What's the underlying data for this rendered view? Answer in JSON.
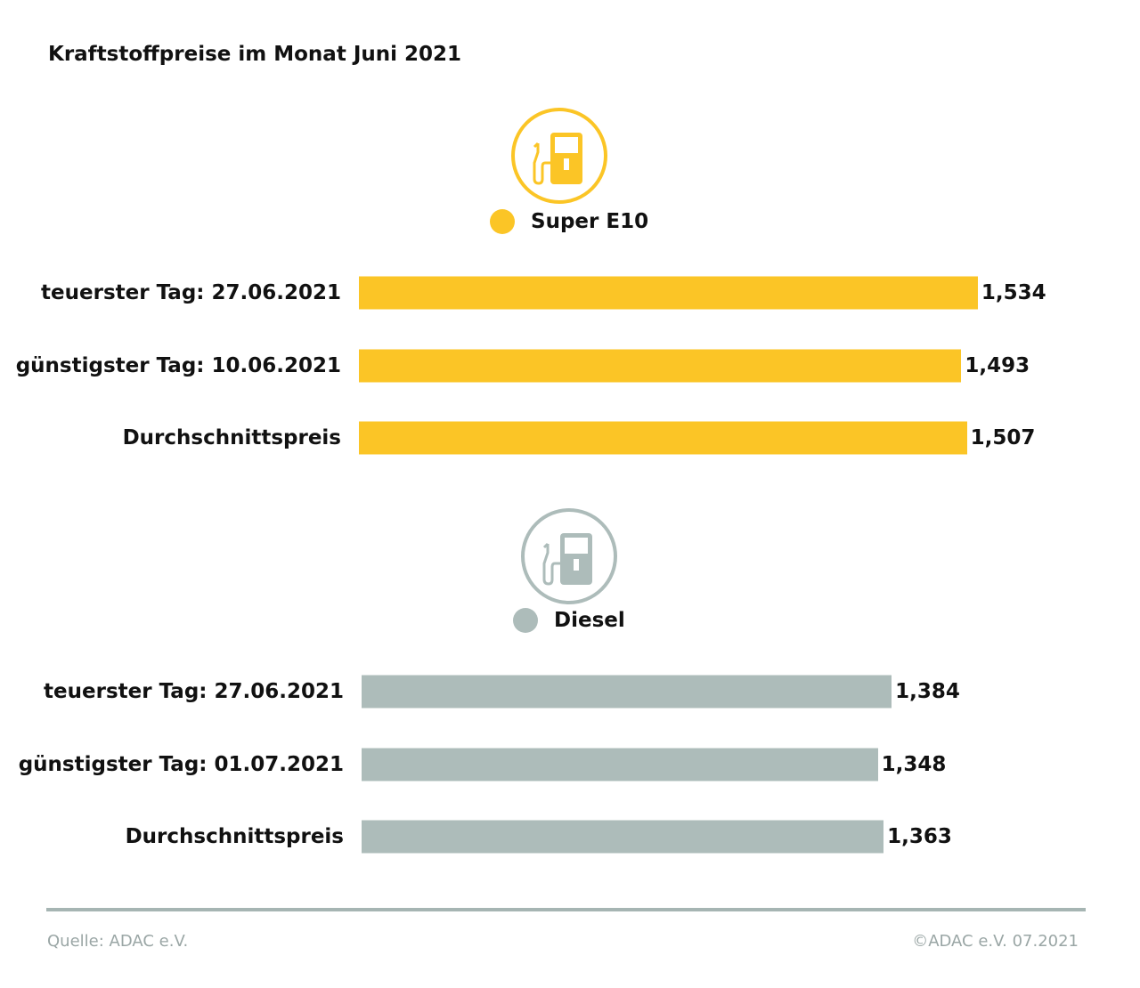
{
  "chart_data": {
    "type": "bar",
    "orientation": "horizontal",
    "title": "Kraftstoffpreise im Monat Juni 2021",
    "groups": [
      {
        "name": "Super E10",
        "color": "#fbc526",
        "icon": "fuel-pump-icon",
        "categories": [
          "teuerster Tag: 27.06.2021",
          "günstigster Tag: 10.06.2021",
          "Durchschnittspreis"
        ],
        "values": [
          1.534,
          1.493,
          1.507
        ],
        "value_labels": [
          "1,534",
          "1,493",
          "1,507"
        ]
      },
      {
        "name": "Diesel",
        "color": "#adbcba",
        "icon": "fuel-pump-icon",
        "categories": [
          "teuerster Tag: 27.06.2021",
          "günstigster Tag: 01.07.2021",
          "Durchschnittspreis"
        ],
        "values": [
          1.384,
          1.348,
          1.363
        ],
        "value_labels": [
          "1,384",
          "1,348",
          "1,363"
        ]
      }
    ],
    "grid": false
  },
  "footer": {
    "source": "Quelle: ADAC e.V.",
    "copyright": "©ADAC e.V. 07.2021"
  }
}
